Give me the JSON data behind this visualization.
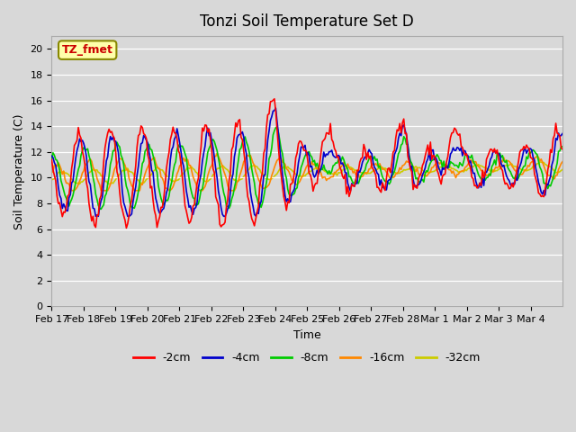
{
  "title": "Tonzi Soil Temperature Set D",
  "xlabel": "Time",
  "ylabel": "Soil Temperature (C)",
  "legend_label": "TZ_fmet",
  "ylim": [
    0,
    21
  ],
  "yticks": [
    0,
    2,
    4,
    6,
    8,
    10,
    12,
    14,
    16,
    18,
    20
  ],
  "x_tick_labels": [
    "Feb 17",
    "Feb 18",
    "Feb 19",
    "Feb 20",
    "Feb 21",
    "Feb 22",
    "Feb 23",
    "Feb 24",
    "Feb 25",
    "Feb 26",
    "Feb 27",
    "Feb 28",
    "Mar 1",
    "Mar 2",
    "Mar 3",
    "Mar 4"
  ],
  "series_colors": {
    "-2cm": "#ff0000",
    "-4cm": "#0000cc",
    "-8cm": "#00cc00",
    "-16cm": "#ff8800",
    "-32cm": "#cccc00"
  },
  "series_labels": [
    "-2cm",
    "-4cm",
    "-8cm",
    "-16cm",
    "-32cm"
  ],
  "plot_bg_color": "#d8d8d8",
  "grid_color": "#ffffff",
  "annotation_bg": "#ffffaa",
  "annotation_edge": "#888800",
  "annotation_text_color": "#cc0000"
}
